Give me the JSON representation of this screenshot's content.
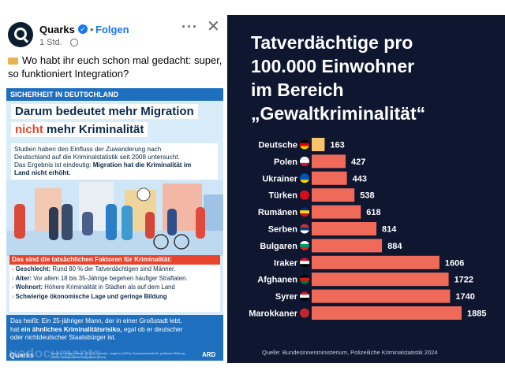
{
  "post": {
    "page_name": "Quarks",
    "separator": "•",
    "follow_label": "Folgen",
    "time": "1 Std.",
    "text_line1": "Wo habt ihr euch schon mal gedacht: super,",
    "text_line2": "so funktioniert Integration?"
  },
  "card": {
    "topic": "SICHERHEIT IN DEUTSCHLAND",
    "title_line1": "Darum bedeutet mehr Migration",
    "title_red": "nicht",
    "title_line2_rest": "mehr Kriminalität",
    "intro_line1": "Studien haben den Einfluss der Zuwanderung nach",
    "intro_line2": "Deutschland auf die Kriminalstatistik seit 2008 untersucht.",
    "intro_line3": "Das Ergebnis ist eindeutig:",
    "intro_bold1": "Migration hat die Kriminalität im",
    "intro_bold2": "Land nicht erhöht.",
    "factors_heading": "Das sind die tatsächlichen Faktoren für Kriminalität:",
    "factors": [
      {
        "label": "Geschlecht:",
        "text": "Rund 80 % der Tatverdächtigen sind Männer."
      },
      {
        "label": "Alter:",
        "text": "Vor allem 18 bis 35-Jährige begehen häufiger Straftaten."
      },
      {
        "label": "Wohnort:",
        "text": "Höhere Kriminalität in Städten als auf dem Land"
      },
      {
        "label": "Schwierige ökonomische Lage und geringe Bildung",
        "text": ""
      }
    ],
    "conclusion_line1": "Das heißt: Ein 25-jähriger Mann, der in einer Großstadt lebt,",
    "conclusion_pre": "hat",
    "conclusion_bold": "ein ähnliches Kriminalitätsrisiko,",
    "conclusion_post": "egal ob er deutscher",
    "conclusion_line3": "oder nichtdeutscher Staatsbürger ist.",
    "brand_left": "Quarks",
    "footer_source": "Quellen: Helbig, Jähnen (2018); Gehrsitz, Ungerer (2022); Bundeszentrale für politische Bildung (2023); Mediendienst Integration (2024)",
    "brand_right": "ARD"
  },
  "watermark": "vodocuments",
  "colors": {
    "chart_bg": "#0e1630",
    "bar_highlight": "#f7c46c",
    "bar_default": "#f06a5a",
    "card_blue": "#1f6fbf",
    "accent_red": "#e8432c"
  },
  "chart_data": {
    "type": "bar",
    "orientation": "horizontal",
    "title_line1": "Tatverdächtige pro",
    "title_line2": "100.000 Einwohner",
    "title_line3": "im Bereich",
    "title_line4": "„Gewaltkriminalität“",
    "categories": [
      "Deutsche",
      "Polen",
      "Ukrainer",
      "Türken",
      "Rumänen",
      "Serben",
      "Bulgaren",
      "Iraker",
      "Afghanen",
      "Syrer",
      "Marokkaner"
    ],
    "values": [
      163,
      427,
      443,
      538,
      618,
      814,
      884,
      1606,
      1722,
      1740,
      1885
    ],
    "flags": [
      "germany-flag",
      "poland-flag",
      "ukraine-flag",
      "turkey-flag",
      "romania-flag",
      "serbia-flag",
      "bulgaria-flag",
      "iraq-flag",
      "afghanistan-flag",
      "syria-flag",
      "morocco-flag"
    ],
    "highlight_index": 0,
    "xlim": [
      0,
      1885
    ],
    "source": "Quelle: Bundesinnenministerium, Polizeiliche Kriminalstatistik 2024"
  }
}
